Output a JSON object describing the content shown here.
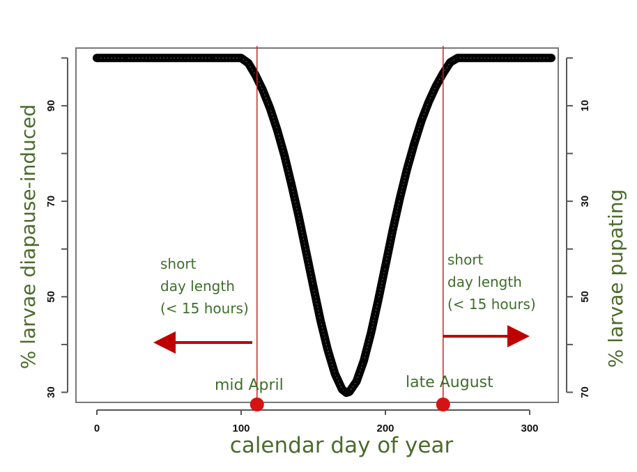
{
  "chart_data": {
    "type": "line",
    "xlabel": "calendar day of year",
    "ylabel_left": "% larvae diapause-induced",
    "ylabel_right": "% larvae pupating",
    "xlim": [
      -10,
      320
    ],
    "ylim": [
      28,
      102
    ],
    "x_ticks": [
      0,
      100,
      200,
      300
    ],
    "y_ticks_left_labels": [
      30,
      50,
      70,
      90
    ],
    "y_ticks_left_minor": [
      40,
      60,
      80,
      100
    ],
    "y_ticks_right_labels": [
      70,
      50,
      30,
      10
    ],
    "y_ticks_right_positions": [
      30,
      50,
      70,
      90
    ],
    "y_ticks_right_minor": [
      40,
      60,
      80,
      100
    ],
    "series": [
      {
        "x": [
          0,
          20,
          40,
          60,
          80,
          100,
          105,
          110,
          115,
          120,
          125,
          130,
          135,
          140,
          145,
          150,
          155,
          160,
          165,
          170,
          173,
          175,
          180,
          185,
          190,
          195,
          200,
          205,
          210,
          215,
          220,
          225,
          230,
          235,
          240,
          245,
          250,
          270,
          290,
          315
        ],
        "y": [
          100,
          100,
          100,
          100,
          100,
          100,
          98.9,
          96.4,
          93.3,
          89.5,
          84.9,
          79.6,
          73.4,
          66.7,
          59.5,
          52.2,
          45.1,
          38.9,
          33.9,
          30.6,
          29.9,
          30.1,
          32.3,
          36.6,
          42.4,
          49.2,
          56.5,
          63.8,
          70.6,
          76.7,
          82.1,
          86.9,
          90.8,
          94.1,
          96.8,
          99.1,
          100,
          100,
          100,
          100
        ],
        "color": "#000000"
      }
    ],
    "reference_lines": [
      {
        "x": 111,
        "color": "#d42020",
        "label": "mid April"
      },
      {
        "x": 240,
        "color": "#d42020",
        "label": "late August"
      }
    ],
    "annotations": [
      {
        "lines": [
          "short",
          "day length",
          "(< 15 hours)"
        ],
        "side": "left"
      },
      {
        "lines": [
          "short",
          "day length",
          "(< 15 hours)"
        ],
        "side": "right"
      }
    ],
    "grid": false
  },
  "colors": {
    "curve": "#000000",
    "reference_line": "#d42020",
    "arrow": "#c00000",
    "marker": "#d41414",
    "title_green": "#4b6b2b",
    "axis": "#555555"
  }
}
